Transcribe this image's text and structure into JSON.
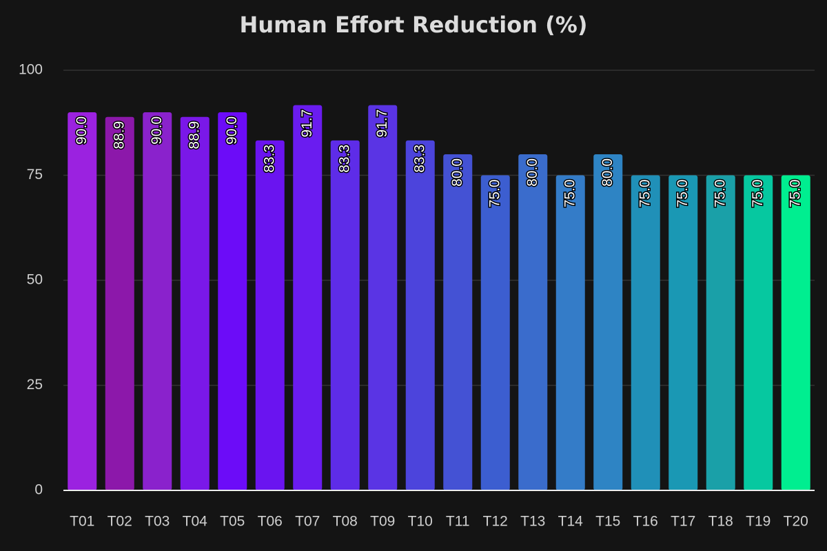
{
  "chart_data": {
    "type": "bar",
    "title": "Human Effort Reduction (%)",
    "categories": [
      "T01",
      "T02",
      "T03",
      "T04",
      "T05",
      "T06",
      "T07",
      "T08",
      "T09",
      "T10",
      "T11",
      "T12",
      "T13",
      "T14",
      "T15",
      "T16",
      "T17",
      "T18",
      "T19",
      "T20"
    ],
    "values": [
      90,
      88.9,
      90,
      88.9,
      90,
      83.3,
      91.7,
      83.3,
      91.7,
      83.3,
      80,
      75,
      80,
      75,
      80,
      75,
      75,
      75,
      75,
      75
    ],
    "value_labels": [
      "90.0",
      "88.9",
      "90.0",
      "88.9",
      "90.0",
      "83.3",
      "91.7",
      "83.3",
      "91.7",
      "83.3",
      "80.0",
      "75.0",
      "80.0",
      "75.0",
      "80.0",
      "75.0",
      "75.0",
      "75.0",
      "75.0",
      "75.0"
    ],
    "colors": [
      "#9b22e0",
      "#8c18aa",
      "#8a22cc",
      "#7a18e8",
      "#6c0cf8",
      "#6a14f0",
      "#6a1cf0",
      "#5e2ce8",
      "#5a34e4",
      "#4c44dc",
      "#4452d4",
      "#3c5ed0",
      "#3a6ccc",
      "#347cc8",
      "#2e84c4",
      "#2090b8",
      "#1a98b4",
      "#1aa0a8",
      "#06c8a0",
      "#00ee90"
    ],
    "ylim": [
      0,
      100
    ],
    "yticks": [
      0,
      25,
      50,
      75,
      100
    ],
    "grid": true
  }
}
